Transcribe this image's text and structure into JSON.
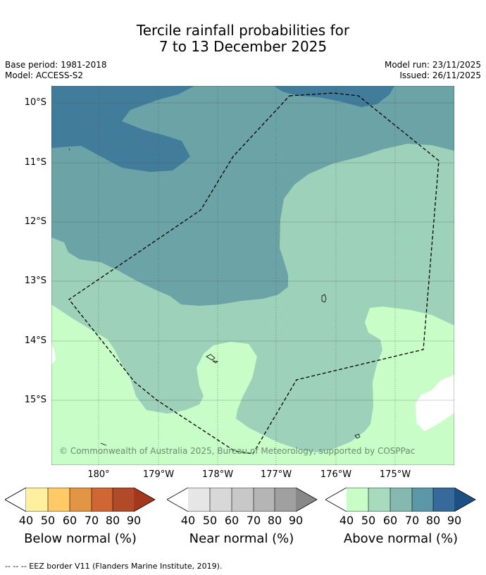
{
  "title": {
    "line1": "Tercile rainfall probabilities for",
    "line2": "7 to 13 December 2025"
  },
  "meta": {
    "base_period": "Base period: 1981-2018",
    "model": "Model: ACCESS-S2",
    "model_run": "Model run: 23/11/2025",
    "issued": "Issued: 26/11/2025"
  },
  "map": {
    "lat_labels": [
      "10°S",
      "11°S",
      "12°S",
      "13°S",
      "14°S",
      "15°S"
    ],
    "lon_labels": [
      "180°",
      "179°W",
      "178°W",
      "177°W",
      "176°W",
      "175°W"
    ],
    "copyright": "© Commonwealth of Australia 2025, Bureau of Meteorology, supported by COSPPac",
    "colors": {
      "below_40": "#c8fdc8",
      "above_50": "#9dd1ba",
      "above_60": "#6ba3a6",
      "above_70": "#417c9b",
      "ocean_white": "#ffffff"
    }
  },
  "colorbars": [
    {
      "label": "Below normal (%)",
      "ticks": [
        "40",
        "50",
        "60",
        "70",
        "80",
        "90"
      ],
      "colors": [
        "#ffffff",
        "#fff0a0",
        "#ffc966",
        "#e29545",
        "#d06632",
        "#b04a28",
        "#a5371f"
      ]
    },
    {
      "label": "Near normal (%)",
      "ticks": [
        "40",
        "50",
        "60",
        "70",
        "80",
        "90"
      ],
      "colors": [
        "#ffffff",
        "#e6e6e6",
        "#d8d8d8",
        "#c8c8c8",
        "#b5b5b5",
        "#a0a0a0",
        "#888888"
      ]
    },
    {
      "label": "Above normal (%)",
      "ticks": [
        "40",
        "50",
        "60",
        "70",
        "80",
        "90"
      ],
      "colors": [
        "#ffffff",
        "#c8fdc8",
        "#a8dabd",
        "#85b8ae",
        "#5c97a7",
        "#376a9b",
        "#1e4f84"
      ]
    }
  ],
  "footer": "--  --  -- EEZ border V11 (Flanders Marine Institute, 2019)."
}
